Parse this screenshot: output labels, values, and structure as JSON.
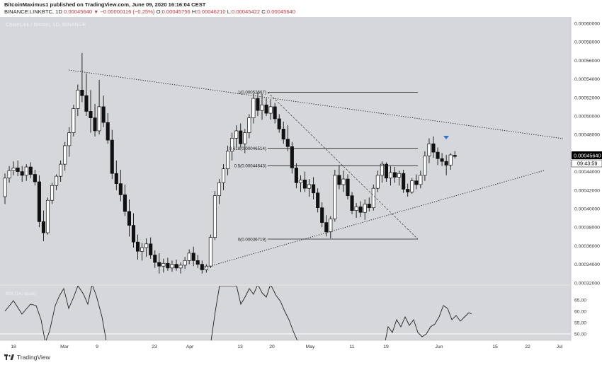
{
  "header": {
    "author_line": "BitcoinMaximus1 published on TradingView.com, June 09, 2020 16:16:04 CEST",
    "symbol": "BINANCE:LINKBTC, 1D",
    "price": "0.00045640",
    "change": "−0.00000116 (−0.25%)",
    "open_label": "O:",
    "open": "0.00045756",
    "high_label": "H:",
    "high": "0.00046210",
    "low_label": "L:",
    "low": "0.00045422",
    "close_label": "C:",
    "close": "0.00045640"
  },
  "watermark": "ChainLink / Bitcoin, 1D, BINANCE",
  "price_tag": {
    "value": "0.00045640",
    "countdown": "09:43:59"
  },
  "colors": {
    "panel_bg": "#d6d7db",
    "bull": "#ffffff",
    "bear": "#111111",
    "accent": "#d1323c",
    "marker": "#2f73d4",
    "tag_bg": "#000000"
  },
  "footer": {
    "brand": "TradingView"
  },
  "chart_data": [
    {
      "type": "candlestick",
      "title": "ChainLink / Bitcoin, 1D, BINANCE",
      "x_tick_labels": [
        "18",
        "Mar",
        "9",
        "23",
        "Apr",
        "13",
        "20",
        "May",
        "11",
        "19",
        "Jun",
        "15",
        "22",
        "Jul"
      ],
      "y_tick_labels": [
        "0.00060000",
        "0.00058000",
        "0.00056000",
        "0.00054000",
        "0.00052000",
        "0.00050000",
        "0.00048000",
        "0.00046000",
        "0.00044000",
        "0.00042000",
        "0.00040000",
        "0.00038000",
        "0.00036000",
        "0.00034000",
        "0.00032000"
      ],
      "ylim": [
        0.00031,
        0.00061
      ],
      "candles": [
        [
          0.000413,
          0.000438,
          0.000405,
          0.000433
        ],
        [
          0.000433,
          0.000446,
          0.000428,
          0.000441
        ],
        [
          0.000441,
          0.000451,
          0.000436,
          0.000444
        ],
        [
          0.000444,
          0.000452,
          0.000435,
          0.00044
        ],
        [
          0.00044,
          0.000446,
          0.000429,
          0.000436
        ],
        [
          0.000436,
          0.000448,
          0.00043,
          0.000445
        ],
        [
          0.000445,
          0.00045,
          0.000433,
          0.000437
        ],
        [
          0.000437,
          0.000442,
          0.000425,
          0.000429
        ],
        [
          0.000429,
          0.000436,
          0.00038,
          0.000386
        ],
        [
          0.000386,
          0.000398,
          0.000365,
          0.000374
        ],
        [
          0.000374,
          0.000412,
          0.000372,
          0.000409
        ],
        [
          0.000409,
          0.000428,
          0.000405,
          0.000425
        ],
        [
          0.000425,
          0.000437,
          0.00042,
          0.000435
        ],
        [
          0.000435,
          0.000452,
          0.000429,
          0.000448
        ],
        [
          0.000448,
          0.000472,
          0.000441,
          0.000468
        ],
        [
          0.000468,
          0.000488,
          0.000456,
          0.000482
        ],
        [
          0.000482,
          0.000512,
          0.000478,
          0.000508
        ],
        [
          0.000508,
          0.000534,
          0.0005,
          0.000528
        ],
        [
          0.000528,
          0.000568,
          0.000515,
          0.000522
        ],
        [
          0.000522,
          0.000546,
          0.0005,
          0.000505
        ],
        [
          0.000505,
          0.000528,
          0.000482,
          0.000498
        ],
        [
          0.000498,
          0.000513,
          0.000478,
          0.000484
        ],
        [
          0.000484,
          0.000539,
          0.00048,
          0.00051
        ],
        [
          0.00051,
          0.000522,
          0.000488,
          0.000493
        ],
        [
          0.000493,
          0.000503,
          0.00047,
          0.000474
        ],
        [
          0.000474,
          0.000485,
          0.000432,
          0.000438
        ],
        [
          0.000438,
          0.000452,
          0.00042,
          0.000427
        ],
        [
          0.000427,
          0.000442,
          0.000408,
          0.000415
        ],
        [
          0.000415,
          0.000426,
          0.000392,
          0.000397
        ],
        [
          0.000397,
          0.00041,
          0.00037,
          0.000382
        ],
        [
          0.000382,
          0.000395,
          0.000358,
          0.000364
        ],
        [
          0.000364,
          0.000372,
          0.000345,
          0.000354
        ],
        [
          0.000354,
          0.000363,
          0.000344,
          0.000358
        ],
        [
          0.000358,
          0.000368,
          0.000348,
          0.000362
        ],
        [
          0.000362,
          0.000369,
          0.000346,
          0.00035
        ],
        [
          0.00035,
          0.000355,
          0.000336,
          0.000342
        ],
        [
          0.000342,
          0.000352,
          0.00033,
          0.000338
        ],
        [
          0.000338,
          0.000346,
          0.000331,
          0.000341
        ],
        [
          0.000341,
          0.000347,
          0.000333,
          0.000336
        ],
        [
          0.000336,
          0.000344,
          0.000332,
          0.00034
        ],
        [
          0.00034,
          0.000345,
          0.000333,
          0.000336
        ],
        [
          0.000336,
          0.000342,
          0.00033,
          0.000339
        ],
        [
          0.000339,
          0.000348,
          0.000335,
          0.000344
        ],
        [
          0.000344,
          0.000356,
          0.00034,
          0.000352
        ],
        [
          0.000352,
          0.000359,
          0.000338,
          0.000344
        ],
        [
          0.000344,
          0.00035,
          0.000336,
          0.00034
        ],
        [
          0.00034,
          0.000344,
          0.00033,
          0.000334
        ],
        [
          0.000334,
          0.00034,
          0.000331,
          0.000338
        ],
        [
          0.000338,
          0.000372,
          0.000336,
          0.000369
        ],
        [
          0.000369,
          0.000419,
          0.000366,
          0.000414
        ],
        [
          0.000414,
          0.000432,
          0.000405,
          0.000428
        ],
        [
          0.000428,
          0.000448,
          0.00042,
          0.000443
        ],
        [
          0.000443,
          0.000468,
          0.000436,
          0.000462
        ],
        [
          0.000462,
          0.000482,
          0.000452,
          0.000476
        ],
        [
          0.000476,
          0.00049,
          0.000466,
          0.000484
        ],
        [
          0.000484,
          0.000492,
          0.000466,
          0.00047
        ],
        [
          0.00047,
          0.000486,
          0.00046,
          0.000482
        ],
        [
          0.000482,
          0.000502,
          0.000476,
          0.000498
        ],
        [
          0.000498,
          0.000524,
          0.000492,
          0.000519
        ],
        [
          0.000519,
          0.000526,
          0.0005,
          0.000506
        ],
        [
          0.000506,
          0.000524,
          0.000496,
          0.000512
        ],
        [
          0.000512,
          0.000519,
          0.0005,
          0.000503
        ],
        [
          0.000503,
          0.000518,
          0.000496,
          0.00051
        ],
        [
          0.00051,
          0.000514,
          0.000492,
          0.000497
        ],
        [
          0.000497,
          0.000502,
          0.000482,
          0.000486
        ],
        [
          0.000486,
          0.000494,
          0.00047,
          0.000475
        ],
        [
          0.000475,
          0.00049,
          0.000462,
          0.000467
        ],
        [
          0.000467,
          0.000472,
          0.000438,
          0.000444
        ],
        [
          0.000444,
          0.000449,
          0.000422,
          0.000428
        ],
        [
          0.000428,
          0.000436,
          0.000418,
          0.000431
        ],
        [
          0.000431,
          0.00044,
          0.000418,
          0.000422
        ],
        [
          0.000422,
          0.000432,
          0.000413,
          0.000426
        ],
        [
          0.000426,
          0.000434,
          0.00041,
          0.000417
        ],
        [
          0.000417,
          0.000422,
          0.000396,
          0.000401
        ],
        [
          0.000401,
          0.000407,
          0.00038,
          0.000385
        ],
        [
          0.000385,
          0.000393,
          0.00037,
          0.000375
        ],
        [
          0.000375,
          0.000392,
          0.000368,
          0.000389
        ],
        [
          0.000389,
          0.000442,
          0.000386,
          0.000436
        ],
        [
          0.000436,
          0.000447,
          0.000421,
          0.000426
        ],
        [
          0.000426,
          0.000441,
          0.000418,
          0.000432
        ],
        [
          0.000432,
          0.000437,
          0.00041,
          0.000414
        ],
        [
          0.000414,
          0.000418,
          0.000394,
          0.000398
        ],
        [
          0.000398,
          0.000406,
          0.00039,
          0.000402
        ],
        [
          0.000402,
          0.000408,
          0.000391,
          0.000396
        ],
        [
          0.000396,
          0.00041,
          0.000388,
          0.000405
        ],
        [
          0.000405,
          0.000412,
          0.000397,
          0.000401
        ],
        [
          0.000401,
          0.000426,
          0.000398,
          0.000422
        ],
        [
          0.000422,
          0.000441,
          0.000418,
          0.000436
        ],
        [
          0.000436,
          0.000451,
          0.000428,
          0.000448
        ],
        [
          0.000448,
          0.00045,
          0.000429,
          0.000433
        ],
        [
          0.000433,
          0.000446,
          0.000425,
          0.000439
        ],
        [
          0.000439,
          0.000445,
          0.000428,
          0.000434
        ],
        [
          0.000434,
          0.000441,
          0.000425,
          0.000438
        ],
        [
          0.000438,
          0.000442,
          0.000417,
          0.000421
        ],
        [
          0.000421,
          0.000427,
          0.000413,
          0.000418
        ],
        [
          0.000418,
          0.000433,
          0.000416,
          0.00043
        ],
        [
          0.00043,
          0.000437,
          0.000421,
          0.000426
        ],
        [
          0.000426,
          0.000441,
          0.000422,
          0.000436
        ],
        [
          0.000436,
          0.000462,
          0.00043,
          0.000457
        ],
        [
          0.000457,
          0.000476,
          0.000449,
          0.00047
        ],
        [
          0.00047,
          0.000478,
          0.000455,
          0.000461
        ],
        [
          0.000461,
          0.000466,
          0.000447,
          0.000454
        ],
        [
          0.000454,
          0.00046,
          0.000446,
          0.000451
        ],
        [
          0.000451,
          0.000458,
          0.000436,
          0.000447
        ],
        [
          0.000447,
          0.00046,
          0.000442,
          0.000458
        ],
        [
          0.00045756,
          0.0004621,
          0.00045422,
          0.0004564
        ]
      ],
      "fib_levels": [
        {
          "label": "1(0.00052567)",
          "value": 0.00052567
        },
        {
          "label": "0.618(0.00046514)",
          "value": 0.00046514
        },
        {
          "label": "0.5(0.00044643)",
          "value": 0.00044643
        },
        {
          "label": "0(0.00036719)",
          "value": 0.00036719
        }
      ]
    },
    {
      "type": "line",
      "title": "RSI (14, close)",
      "y_tick_labels": [
        "65.00",
        "60.00",
        "55.00",
        "50.00"
      ],
      "ylim": [
        47,
        68
      ],
      "reference_level": 50,
      "note": "RSI line crosses outside the panel range where values are not visible"
    }
  ]
}
